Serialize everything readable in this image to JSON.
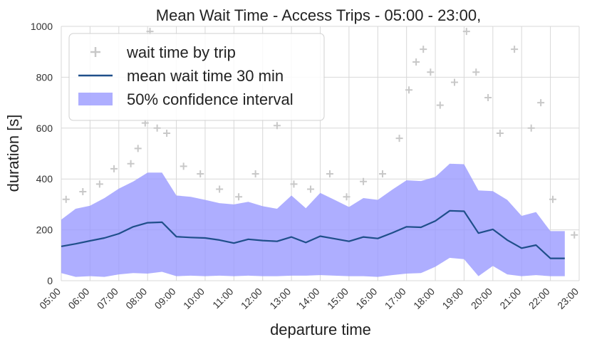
{
  "chart_data": {
    "type": "line",
    "title": "Mean Wait Time - Access Trips - 05:00 - 23:00,",
    "xlabel": "departure time",
    "ylabel": "duration [s]",
    "ylim": [
      0,
      1000
    ],
    "xlim": [
      "05:00",
      "23:00"
    ],
    "yticks": [
      0,
      200,
      400,
      600,
      800,
      1000
    ],
    "xticks": [
      "05:00",
      "06:00",
      "07:00",
      "08:00",
      "09:00",
      "10:00",
      "11:00",
      "12:00",
      "13:00",
      "14:00",
      "15:00",
      "16:00",
      "17:00",
      "18:00",
      "19:00",
      "20:00",
      "21:00",
      "22:00",
      "23:00"
    ],
    "grid": true,
    "legend_position": "top-left",
    "legend": [
      "wait time by trip",
      "mean wait time 30 min",
      "50% confidence interval"
    ],
    "colors": {
      "mean_line": "#1f4f8a",
      "confidence_band": "#9a9aff",
      "scatter": "#c8c8c8",
      "grid": "#d8d8d8"
    },
    "series": [
      {
        "name": "mean wait time 30 min",
        "x": [
          "05:00",
          "05:30",
          "06:00",
          "06:30",
          "07:00",
          "07:30",
          "08:00",
          "08:30",
          "09:00",
          "09:30",
          "10:00",
          "10:30",
          "11:00",
          "11:30",
          "12:00",
          "12:30",
          "13:00",
          "13:30",
          "14:00",
          "14:30",
          "15:00",
          "15:30",
          "16:00",
          "16:30",
          "17:00",
          "17:30",
          "18:00",
          "18:30",
          "19:00",
          "19:30",
          "20:00",
          "20:30",
          "21:00",
          "21:30",
          "22:00",
          "22:30"
        ],
        "values": [
          135,
          145,
          157,
          168,
          185,
          212,
          228,
          230,
          173,
          170,
          168,
          160,
          148,
          163,
          158,
          155,
          172,
          150,
          175,
          165,
          155,
          172,
          166,
          188,
          212,
          210,
          235,
          275,
          273,
          187,
          202,
          160,
          128,
          140,
          88,
          88
        ]
      },
      {
        "name": "50% confidence interval",
        "x": [
          "05:00",
          "05:30",
          "06:00",
          "06:30",
          "07:00",
          "07:30",
          "08:00",
          "08:30",
          "09:00",
          "09:30",
          "10:00",
          "10:30",
          "11:00",
          "11:30",
          "12:00",
          "12:30",
          "13:00",
          "13:30",
          "14:00",
          "14:30",
          "15:00",
          "15:30",
          "16:00",
          "16:30",
          "17:00",
          "17:30",
          "18:00",
          "18:30",
          "19:00",
          "19:30",
          "20:00",
          "20:30",
          "21:00",
          "21:30",
          "22:00",
          "22:30"
        ],
        "upper": [
          240,
          283,
          295,
          325,
          362,
          390,
          425,
          425,
          335,
          330,
          318,
          305,
          300,
          310,
          293,
          283,
          335,
          285,
          345,
          318,
          290,
          325,
          318,
          358,
          395,
          392,
          408,
          460,
          458,
          355,
          352,
          318,
          255,
          270,
          195,
          195
        ],
        "lower": [
          30,
          15,
          18,
          15,
          25,
          30,
          28,
          35,
          18,
          20,
          18,
          20,
          18,
          20,
          18,
          18,
          20,
          20,
          22,
          20,
          18,
          18,
          15,
          22,
          28,
          30,
          55,
          90,
          85,
          18,
          58,
          25,
          18,
          22,
          18,
          18
        ]
      },
      {
        "name": "wait time by trip",
        "x": [
          "05:10",
          "05:45",
          "06:20",
          "06:50",
          "07:25",
          "07:40",
          "07:55",
          "08:05",
          "08:20",
          "08:40",
          "09:15",
          "09:50",
          "10:30",
          "11:10",
          "11:45",
          "12:30",
          "13:05",
          "13:40",
          "14:20",
          "14:55",
          "15:30",
          "16:10",
          "16:45",
          "17:05",
          "17:20",
          "17:35",
          "17:50",
          "18:10",
          "18:40",
          "19:05",
          "19:25",
          "19:50",
          "20:15",
          "20:45",
          "21:20",
          "21:40",
          "22:05",
          "22:50"
        ],
        "values": [
          320,
          350,
          380,
          440,
          460,
          520,
          620,
          980,
          600,
          580,
          450,
          420,
          360,
          330,
          420,
          610,
          380,
          360,
          420,
          330,
          390,
          420,
          560,
          750,
          860,
          910,
          820,
          690,
          780,
          980,
          820,
          720,
          580,
          910,
          600,
          700,
          320,
          180
        ]
      }
    ]
  }
}
